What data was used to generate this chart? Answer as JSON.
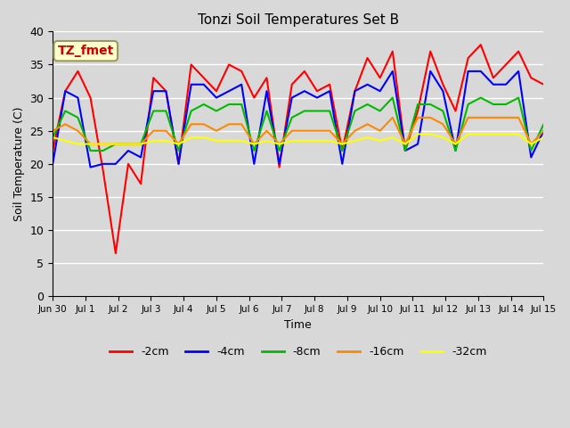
{
  "title": "Tonzi Soil Temperatures Set B",
  "xlabel": "Time",
  "ylabel": "Soil Temperature (C)",
  "annotation": "TZ_fmet",
  "ylim": [
    0,
    40
  ],
  "yticks": [
    0,
    5,
    10,
    15,
    20,
    25,
    30,
    35,
    40
  ],
  "x_labels": [
    "Jun 30",
    "Jul 1",
    "Jul 2",
    "Jul 3",
    "Jul 4",
    "Jul 5",
    "Jul 6",
    "Jul 7",
    "Jul 8",
    "Jul 9",
    "Jul 10",
    "Jul 11",
    "Jul 12",
    "Jul 13",
    "Jul 14",
    "Jul 15"
  ],
  "series": {
    "-2cm": {
      "color": "#ff0000",
      "lw": 1.5
    },
    "-4cm": {
      "color": "#0000ff",
      "lw": 1.5
    },
    "-8cm": {
      "color": "#00bb00",
      "lw": 1.5
    },
    "-16cm": {
      "color": "#ff8800",
      "lw": 1.5
    },
    "-32cm": {
      "color": "#ffff00",
      "lw": 1.5
    }
  },
  "legend_order": [
    "-2cm",
    "-4cm",
    "-8cm",
    "-16cm",
    "-32cm"
  ],
  "bg_color": "#d8d8d8",
  "plot_bg_color": "#d8d8d8",
  "figsize": [
    6.4,
    4.8
  ],
  "dpi": 100,
  "data_2cm": [
    22,
    31,
    34,
    30,
    19,
    6.5,
    20,
    17,
    33,
    31,
    20,
    35,
    33,
    31,
    35,
    34,
    30,
    33,
    19.5,
    32,
    34,
    31,
    32,
    22,
    31,
    36,
    33,
    37,
    22,
    28,
    37,
    32,
    28,
    36,
    38,
    33,
    35,
    37,
    33,
    32
  ],
  "data_4cm": [
    20,
    31,
    30,
    19.5,
    20,
    20,
    22,
    21,
    31,
    31,
    20,
    32,
    32,
    30,
    31,
    32,
    20,
    31,
    20,
    30,
    31,
    30,
    31,
    20,
    31,
    32,
    31,
    34,
    22,
    23,
    34,
    31,
    22,
    34,
    34,
    32,
    32,
    34,
    21,
    25
  ],
  "data_8cm": [
    24,
    28,
    27,
    22,
    22,
    23,
    23,
    23,
    28,
    28,
    22,
    28,
    29,
    28,
    29,
    29,
    22,
    28,
    22,
    27,
    28,
    28,
    28,
    22,
    28,
    29,
    28,
    30,
    22,
    29,
    29,
    28,
    22,
    29,
    30,
    29,
    29,
    30,
    22,
    26
  ],
  "data_16cm": [
    25,
    26,
    25,
    23,
    23,
    23,
    23,
    23,
    25,
    25,
    23,
    26,
    26,
    25,
    26,
    26,
    23,
    25,
    23,
    25,
    25,
    25,
    25,
    23,
    25,
    26,
    25,
    27,
    23,
    27,
    27,
    26,
    23,
    27,
    27,
    27,
    27,
    27,
    23,
    25
  ],
  "data_32cm": [
    24,
    23.5,
    23,
    23,
    23,
    23,
    23,
    23,
    23.5,
    23.5,
    23,
    24,
    24,
    23.5,
    23.5,
    23.5,
    23,
    23.5,
    23,
    23.5,
    23.5,
    23.5,
    23.5,
    23,
    23.5,
    24,
    23.5,
    24,
    23,
    24.5,
    24.5,
    24,
    23,
    24.5,
    24.5,
    24.5,
    24.5,
    24.5,
    23,
    24
  ]
}
